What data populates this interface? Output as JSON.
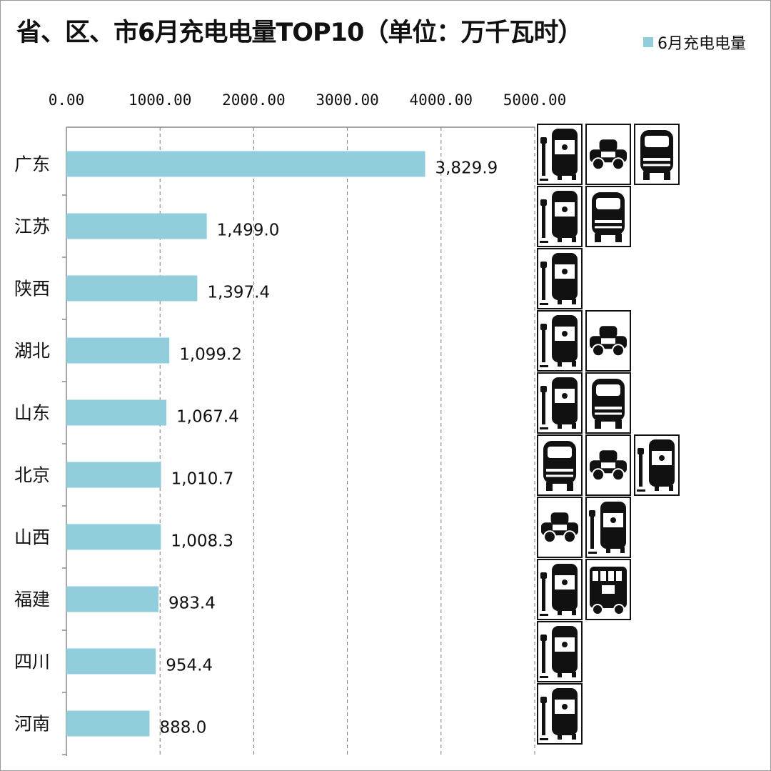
{
  "chart_data": {
    "type": "bar",
    "orientation": "horizontal",
    "title": "省、区、市6月充电电量TOP10（单位：万千瓦时）",
    "legend": {
      "label": "6月充电电量",
      "position": "top-right",
      "color": "#92cddc"
    },
    "xlim": [
      0,
      5000
    ],
    "x_ticks": [
      "0.00",
      "1000.00",
      "2000.00",
      "3000.00",
      "4000.00",
      "5000.00"
    ],
    "grid": "vertical-dashed",
    "categories": [
      "广东",
      "江苏",
      "陕西",
      "湖北",
      "山东",
      "北京",
      "山西",
      "福建",
      "四川",
      "河南"
    ],
    "values": [
      3829.9,
      1499.0,
      1397.4,
      1099.2,
      1067.4,
      1010.7,
      1008.3,
      983.4,
      954.4,
      888.0
    ],
    "value_labels": [
      "3,829.9",
      "1,499.0",
      "1,397.4",
      "1,099.2",
      "1,067.4",
      "1,010.7",
      "1,008.3",
      "983.4",
      "954.4",
      "888.0"
    ],
    "bar_color": "#92cddc",
    "row_icons": [
      [
        "bus-charging-icon",
        "taxi-side-icon",
        "car-front-icon"
      ],
      [
        "bus-charging-icon",
        "car-front-icon"
      ],
      [
        "bus-charging-icon"
      ],
      [
        "bus-charging-icon",
        "taxi-side-icon"
      ],
      [
        "bus-charging-icon",
        "car-front-icon"
      ],
      [
        "car-front-icon",
        "taxi-side-icon",
        "bus-charging-icon"
      ],
      [
        "taxi-side-icon",
        "bus-charging-icon"
      ],
      [
        "bus-charging-icon",
        "bus-side-icon"
      ],
      [
        "bus-charging-icon"
      ],
      [
        "bus-charging-icon"
      ]
    ]
  }
}
